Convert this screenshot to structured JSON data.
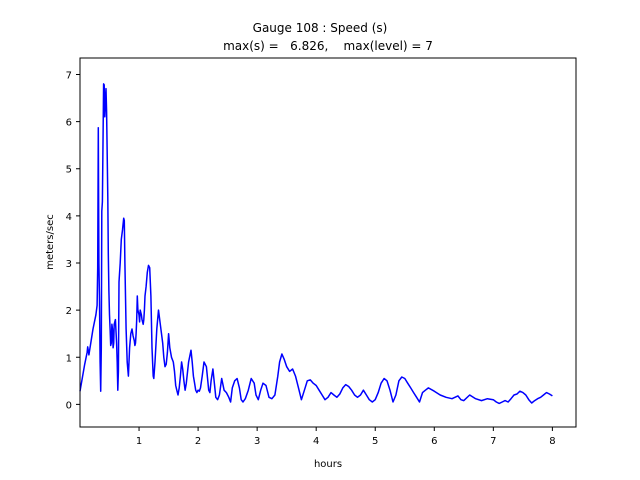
{
  "chart_data": {
    "type": "line",
    "title_line1": "Gauge 108 : Speed (s)",
    "title_line2": "max(s) =   6.826,    max(level) = 7",
    "xlabel": "hours",
    "ylabel": "meters/sec",
    "xlim": [
      0.0,
      8.4
    ],
    "ylim": [
      -0.48,
      7.35
    ],
    "xticks": [
      1,
      2,
      3,
      4,
      5,
      6,
      7,
      8
    ],
    "yticks": [
      0,
      1,
      2,
      3,
      4,
      5,
      6,
      7
    ],
    "grid": false,
    "colors": {
      "line": "#0000ff",
      "axes": "#000000",
      "background": "#ffffff"
    },
    "series": [
      {
        "name": "speed",
        "x": [
          0.0,
          0.08,
          0.12,
          0.13,
          0.15,
          0.22,
          0.27,
          0.29,
          0.3,
          0.31,
          0.32,
          0.33,
          0.34,
          0.35,
          0.36,
          0.37,
          0.38,
          0.4,
          0.41,
          0.42,
          0.44,
          0.45,
          0.46,
          0.47,
          0.48,
          0.49,
          0.5,
          0.51,
          0.52,
          0.53,
          0.54,
          0.55,
          0.56,
          0.57,
          0.58,
          0.6,
          0.62,
          0.63,
          0.64,
          0.65,
          0.66,
          0.67,
          0.68,
          0.7,
          0.72,
          0.74,
          0.75,
          0.76,
          0.78,
          0.8,
          0.82,
          0.84,
          0.86,
          0.88,
          0.9,
          0.92,
          0.93,
          0.94,
          0.95,
          0.96,
          0.97,
          0.98,
          1.0,
          1.01,
          1.02,
          1.03,
          1.04,
          1.05,
          1.06,
          1.07,
          1.08,
          1.09,
          1.1,
          1.12,
          1.14,
          1.16,
          1.18,
          1.2,
          1.22,
          1.24,
          1.25,
          1.27,
          1.3,
          1.33,
          1.36,
          1.38,
          1.4,
          1.42,
          1.44,
          1.46,
          1.48,
          1.5,
          1.52,
          1.55,
          1.58,
          1.6,
          1.62,
          1.64,
          1.66,
          1.68,
          1.7,
          1.72,
          1.74,
          1.76,
          1.78,
          1.8,
          1.84,
          1.88,
          1.9,
          1.92,
          1.94,
          1.96,
          1.98,
          2.0,
          2.02,
          2.04,
          2.07,
          2.1,
          2.14,
          2.18,
          2.2,
          2.22,
          2.25,
          2.28,
          2.3,
          2.33,
          2.36,
          2.4,
          2.44,
          2.48,
          2.52,
          2.55,
          2.58,
          2.62,
          2.66,
          2.7,
          2.73,
          2.76,
          2.8,
          2.85,
          2.9,
          2.95,
          2.98,
          3.02,
          3.06,
          3.1,
          3.15,
          3.2,
          3.25,
          3.3,
          3.35,
          3.38,
          3.42,
          3.46,
          3.5,
          3.55,
          3.6,
          3.65,
          3.7,
          3.75,
          3.8,
          3.85,
          3.9,
          3.95,
          4.0,
          4.05,
          4.1,
          4.15,
          4.2,
          4.25,
          4.3,
          4.35,
          4.4,
          4.45,
          4.5,
          4.55,
          4.6,
          4.65,
          4.7,
          4.75,
          4.8,
          4.85,
          4.9,
          4.95,
          5.0,
          5.05,
          5.1,
          5.15,
          5.2,
          5.25,
          5.3,
          5.35,
          5.4,
          5.45,
          5.5,
          5.55,
          5.6,
          5.65,
          5.7,
          5.75,
          5.8,
          5.85,
          5.9,
          6.0,
          6.1,
          6.2,
          6.3,
          6.4,
          6.45,
          6.5,
          6.6,
          6.7,
          6.8,
          6.9,
          7.0,
          7.05,
          7.1,
          7.15,
          7.2,
          7.25,
          7.3,
          7.35,
          7.4,
          7.45,
          7.5,
          7.55,
          7.6,
          7.65,
          7.7,
          7.75,
          7.8,
          7.85,
          7.9,
          7.95,
          8.0
        ],
        "y": [
          0.28,
          0.85,
          1.1,
          1.22,
          1.05,
          1.6,
          1.9,
          2.1,
          2.9,
          5.87,
          3.0,
          2.2,
          0.9,
          0.28,
          1.2,
          4.1,
          4.3,
          6.8,
          6.78,
          6.1,
          6.7,
          6.2,
          5.3,
          4.4,
          3.2,
          2.4,
          1.9,
          1.6,
          1.25,
          1.3,
          1.7,
          1.6,
          1.2,
          1.3,
          1.7,
          1.8,
          1.3,
          0.9,
          0.3,
          0.7,
          2.6,
          2.8,
          3.0,
          3.5,
          3.7,
          3.95,
          3.9,
          3.0,
          1.6,
          0.9,
          0.6,
          1.2,
          1.5,
          1.6,
          1.45,
          1.35,
          1.25,
          1.3,
          1.5,
          1.8,
          2.3,
          2.0,
          1.9,
          1.75,
          2.0,
          1.95,
          1.9,
          1.8,
          1.75,
          1.7,
          1.8,
          2.0,
          2.3,
          2.5,
          2.8,
          2.95,
          2.9,
          2.3,
          1.2,
          0.6,
          0.55,
          0.9,
          1.6,
          2.0,
          1.7,
          1.5,
          1.3,
          1.0,
          0.8,
          0.85,
          1.1,
          1.5,
          1.2,
          1.0,
          0.9,
          0.7,
          0.4,
          0.3,
          0.2,
          0.35,
          0.6,
          0.9,
          0.75,
          0.5,
          0.3,
          0.45,
          0.9,
          1.15,
          0.9,
          0.6,
          0.45,
          0.3,
          0.25,
          0.3,
          0.28,
          0.35,
          0.6,
          0.9,
          0.8,
          0.3,
          0.25,
          0.5,
          0.75,
          0.4,
          0.15,
          0.1,
          0.2,
          0.55,
          0.3,
          0.25,
          0.15,
          0.05,
          0.35,
          0.5,
          0.55,
          0.35,
          0.1,
          0.05,
          0.12,
          0.3,
          0.55,
          0.45,
          0.2,
          0.1,
          0.3,
          0.45,
          0.4,
          0.15,
          0.12,
          0.2,
          0.6,
          0.9,
          1.07,
          0.95,
          0.8,
          0.7,
          0.75,
          0.6,
          0.35,
          0.1,
          0.3,
          0.5,
          0.52,
          0.45,
          0.4,
          0.3,
          0.2,
          0.1,
          0.15,
          0.25,
          0.2,
          0.15,
          0.22,
          0.35,
          0.42,
          0.38,
          0.3,
          0.2,
          0.15,
          0.2,
          0.3,
          0.2,
          0.1,
          0.05,
          0.1,
          0.25,
          0.45,
          0.55,
          0.5,
          0.3,
          0.05,
          0.2,
          0.5,
          0.58,
          0.55,
          0.45,
          0.35,
          0.25,
          0.15,
          0.05,
          0.25,
          0.3,
          0.35,
          0.28,
          0.2,
          0.15,
          0.12,
          0.18,
          0.1,
          0.08,
          0.2,
          0.12,
          0.08,
          0.12,
          0.1,
          0.05,
          0.02,
          0.05,
          0.08,
          0.05,
          0.12,
          0.2,
          0.22,
          0.28,
          0.25,
          0.2,
          0.1,
          0.03,
          0.08,
          0.12,
          0.15,
          0.2,
          0.25,
          0.22,
          0.18
        ]
      }
    ]
  }
}
